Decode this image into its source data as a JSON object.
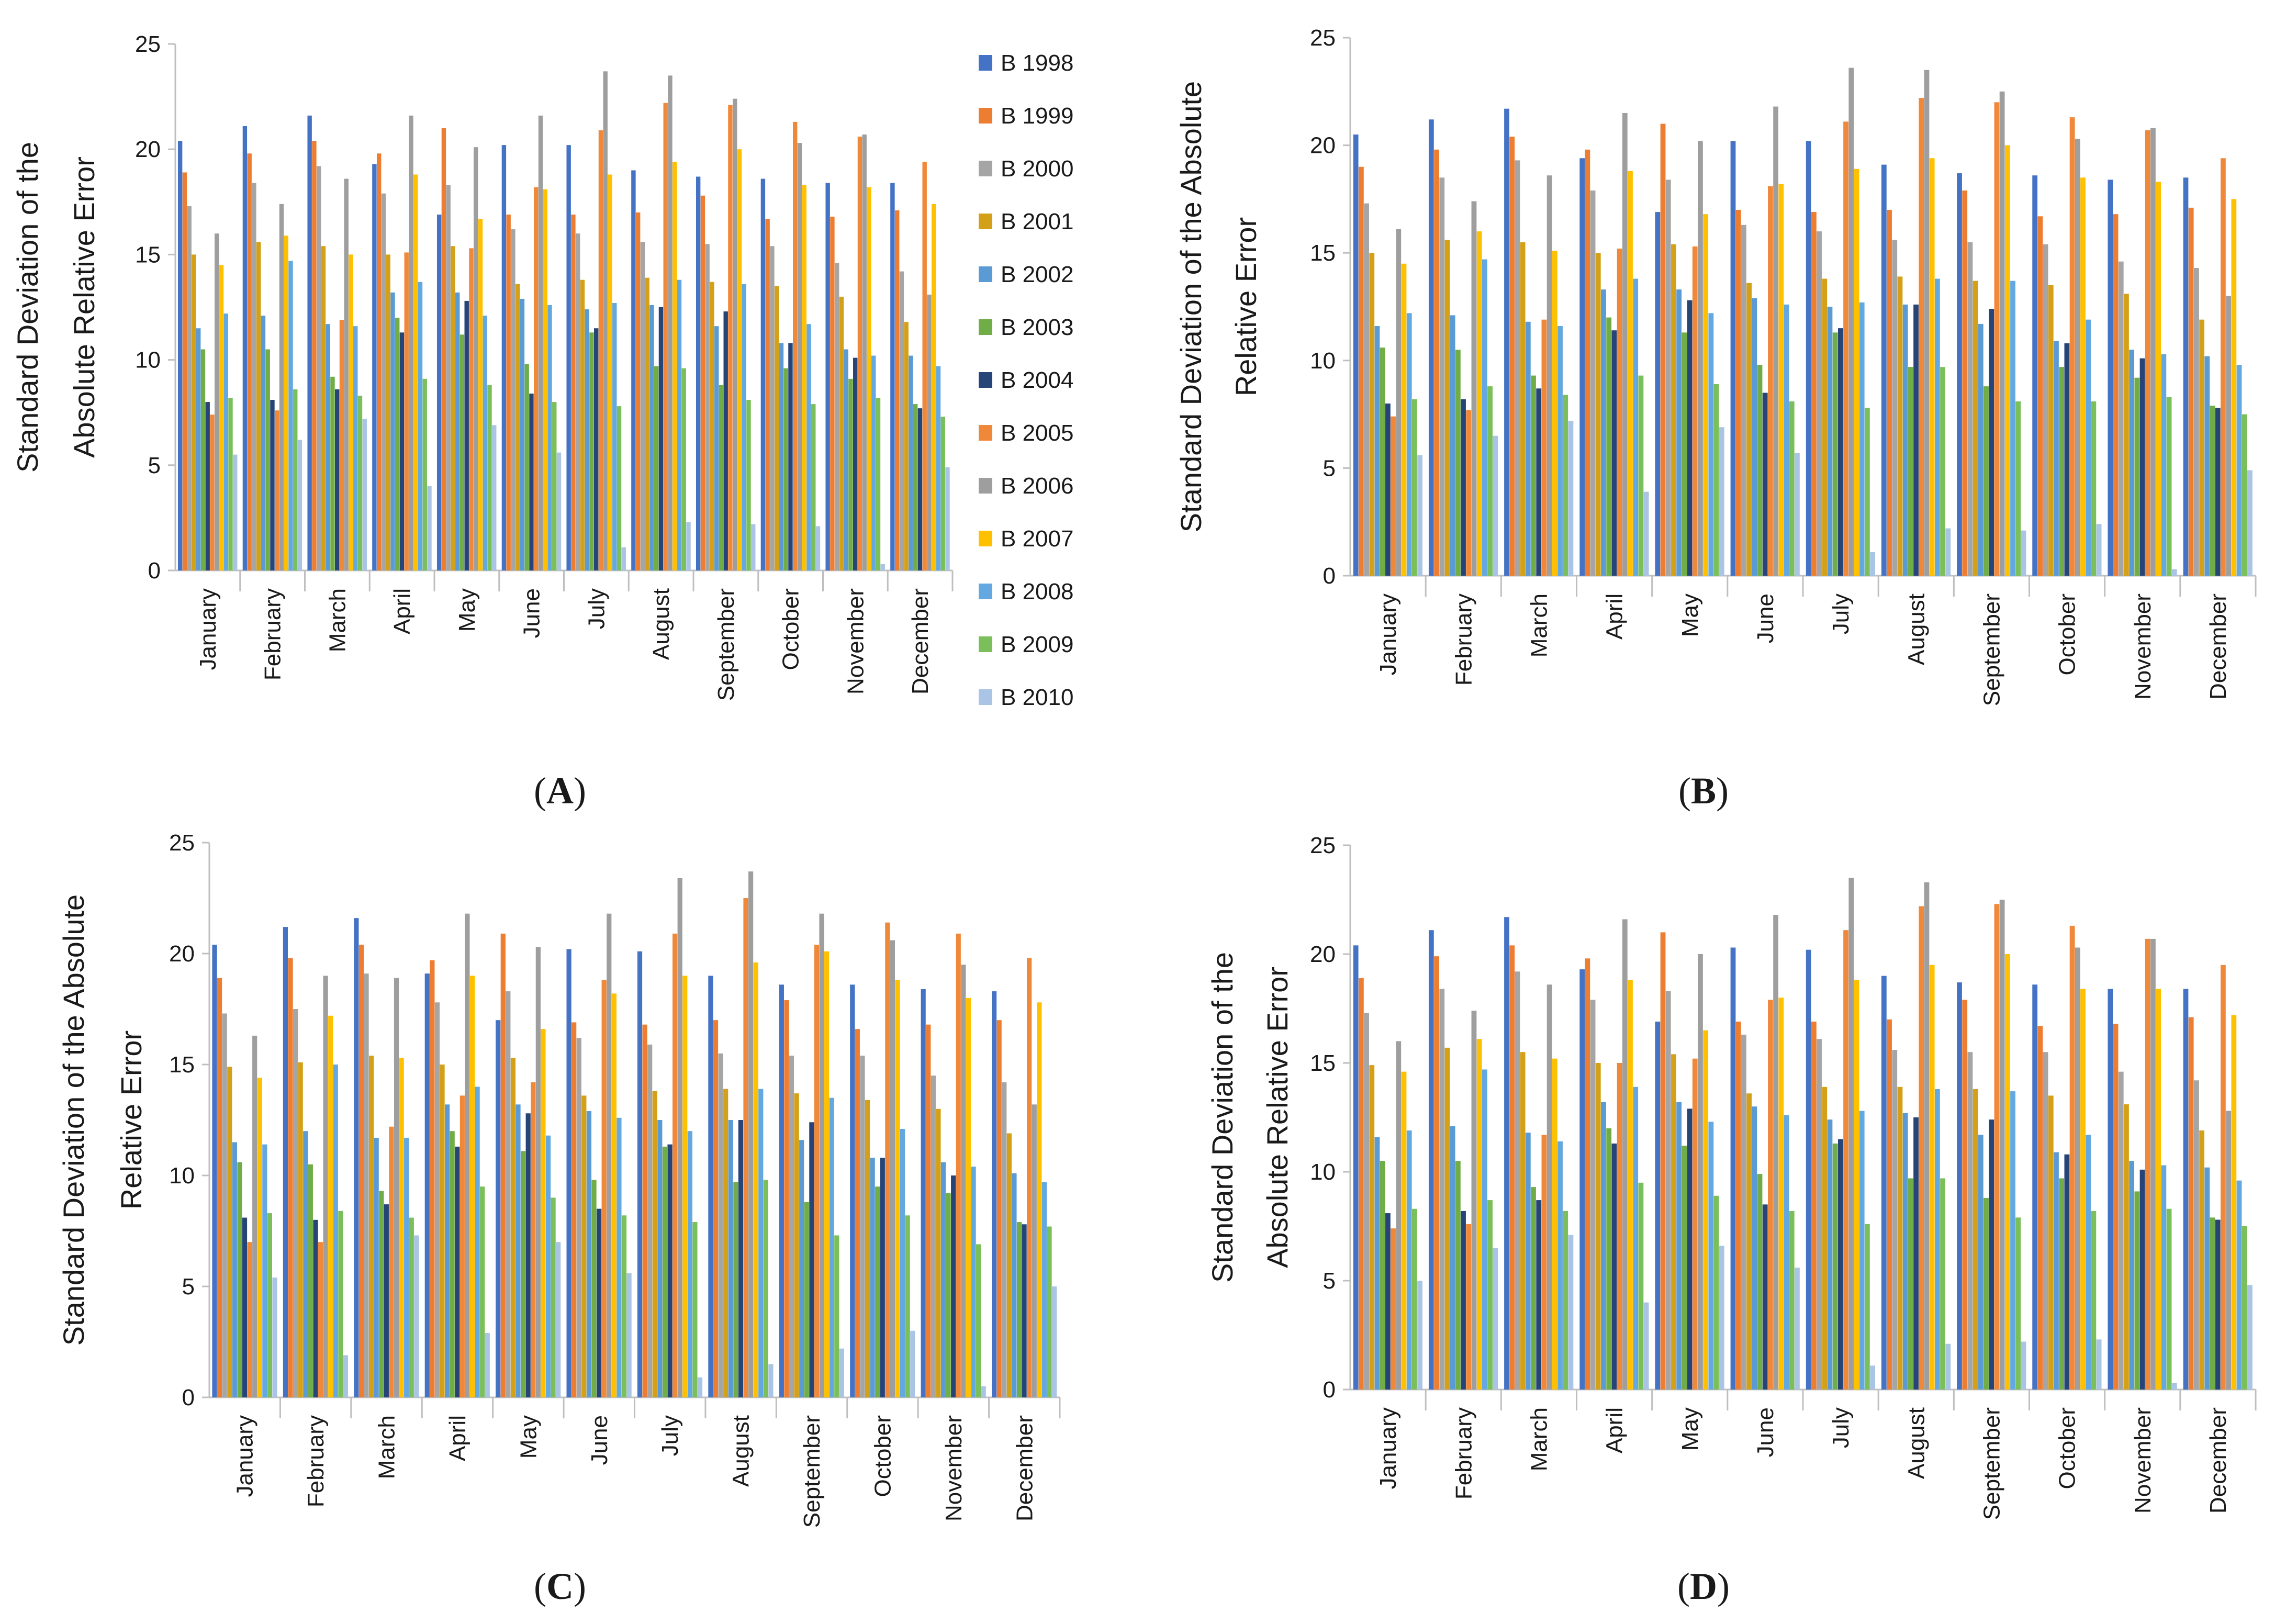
{
  "figure": {
    "panels": [
      "A",
      "B",
      "C",
      "D"
    ]
  },
  "legend": {
    "entries": [
      "B 1998",
      "B 1999",
      "B 2000",
      "B 2001",
      "B 2002",
      "B 2003",
      "B 2004",
      "B 2005",
      "B 2006",
      "B 2007",
      "B 2008",
      "B 2009",
      "B 2010"
    ]
  },
  "colors": [
    "#4472C4",
    "#ED7D31",
    "#A5A5A5",
    "#D4A017",
    "#5B9BD5",
    "#70AD47",
    "#264478",
    "#F0883A",
    "#9E9E9E",
    "#FFC000",
    "#63A8E0",
    "#7BBF5A",
    "#A9C4E4"
  ],
  "chart_data": [
    {
      "type": "bar",
      "panel": "A",
      "title": "",
      "ylabel": [
        "Standard Deviation of the",
        "Absolute Relative Error"
      ],
      "xlabel": "",
      "ylim": [
        0,
        25
      ],
      "yticks": [
        0,
        5,
        10,
        15,
        20,
        25
      ],
      "grid": false,
      "legend_position": "right",
      "categories": [
        "January",
        "February",
        "March",
        "April",
        "May",
        "June",
        "July",
        "August",
        "September",
        "October",
        "November",
        "December"
      ],
      "series": [
        {
          "name": "B 1998",
          "values": [
            20.4,
            21.1,
            21.6,
            19.3,
            16.9,
            20.2,
            20.2,
            19.0,
            18.7,
            18.6,
            18.4,
            18.4
          ]
        },
        {
          "name": "B 1999",
          "values": [
            18.9,
            19.8,
            20.4,
            19.8,
            21.0,
            16.9,
            16.9,
            17.0,
            17.8,
            16.7,
            16.8,
            17.1
          ]
        },
        {
          "name": "B 2000",
          "values": [
            17.3,
            18.4,
            19.2,
            17.9,
            18.3,
            16.2,
            16.0,
            15.6,
            15.5,
            15.4,
            14.6,
            14.2
          ]
        },
        {
          "name": "B 2001",
          "values": [
            15.0,
            15.6,
            15.4,
            15.0,
            15.4,
            13.6,
            13.8,
            13.9,
            13.7,
            13.5,
            13.0,
            11.8
          ]
        },
        {
          "name": "B 2002",
          "values": [
            11.5,
            12.1,
            11.7,
            13.2,
            13.2,
            12.9,
            12.4,
            12.6,
            11.6,
            10.8,
            10.5,
            10.2
          ]
        },
        {
          "name": "B 2003",
          "values": [
            10.5,
            10.5,
            9.2,
            12.0,
            11.2,
            9.8,
            11.3,
            9.7,
            8.8,
            9.6,
            9.1,
            7.9
          ]
        },
        {
          "name": "B 2004",
          "values": [
            8.0,
            8.1,
            8.6,
            11.3,
            12.8,
            8.4,
            11.5,
            12.5,
            12.3,
            10.8,
            10.1,
            7.7
          ]
        },
        {
          "name": "B 2005",
          "values": [
            7.4,
            7.6,
            11.9,
            15.1,
            15.3,
            18.2,
            20.9,
            22.2,
            22.1,
            21.3,
            20.6,
            19.4
          ]
        },
        {
          "name": "B 2006",
          "values": [
            16.0,
            17.4,
            18.6,
            21.6,
            20.1,
            21.6,
            23.7,
            23.5,
            22.4,
            20.3,
            20.7,
            13.1
          ]
        },
        {
          "name": "B 2007",
          "values": [
            14.5,
            15.9,
            15.0,
            18.8,
            16.7,
            18.1,
            18.8,
            19.4,
            20.0,
            18.3,
            18.2,
            17.4
          ]
        },
        {
          "name": "B 2008",
          "values": [
            12.2,
            14.7,
            11.6,
            13.7,
            12.1,
            12.6,
            12.7,
            13.8,
            13.6,
            11.7,
            10.2,
            9.7
          ]
        },
        {
          "name": "B 2009",
          "values": [
            8.2,
            8.6,
            8.3,
            9.1,
            8.8,
            8.0,
            7.8,
            9.6,
            8.1,
            7.9,
            8.2,
            7.3
          ]
        },
        {
          "name": "B 2010",
          "values": [
            5.5,
            6.2,
            7.2,
            4.0,
            6.9,
            5.6,
            1.1,
            2.3,
            2.2,
            2.1,
            0.3,
            4.9
          ]
        }
      ]
    },
    {
      "type": "bar",
      "panel": "B",
      "title": "",
      "ylabel": [
        "Standard Deviation of the Absolute",
        "Relative Error"
      ],
      "xlabel": "",
      "ylim": [
        0,
        25
      ],
      "yticks": [
        0,
        5,
        10,
        15,
        20,
        25
      ],
      "grid": false,
      "categories": [
        "January",
        "February",
        "March",
        "April",
        "May",
        "June",
        "July",
        "August",
        "September",
        "October",
        "November",
        "December"
      ],
      "series": [
        {
          "name": "B 1998",
          "values": [
            20.5,
            21.2,
            21.7,
            19.4,
            16.9,
            20.2,
            20.2,
            19.1,
            18.7,
            18.6,
            18.4,
            18.5
          ]
        },
        {
          "name": "B 1999",
          "values": [
            19.0,
            19.8,
            20.4,
            19.8,
            21.0,
            17.0,
            16.9,
            17.0,
            17.9,
            16.7,
            16.8,
            17.1
          ]
        },
        {
          "name": "B 2000",
          "values": [
            17.3,
            18.5,
            19.3,
            17.9,
            18.4,
            16.3,
            16.0,
            15.6,
            15.5,
            15.4,
            14.6,
            14.3
          ]
        },
        {
          "name": "B 2001",
          "values": [
            15.0,
            15.6,
            15.5,
            15.0,
            15.4,
            13.6,
            13.8,
            13.9,
            13.7,
            13.5,
            13.1,
            11.9
          ]
        },
        {
          "name": "B 2002",
          "values": [
            11.6,
            12.1,
            11.8,
            13.3,
            13.3,
            12.9,
            12.5,
            12.6,
            11.7,
            10.9,
            10.5,
            10.2
          ]
        },
        {
          "name": "B 2003",
          "values": [
            10.6,
            10.5,
            9.3,
            12.0,
            11.3,
            9.8,
            11.3,
            9.7,
            8.8,
            9.7,
            9.2,
            7.9
          ]
        },
        {
          "name": "B 2004",
          "values": [
            8.0,
            8.2,
            8.7,
            11.4,
            12.8,
            8.5,
            11.5,
            12.6,
            12.4,
            10.8,
            10.1,
            7.8
          ]
        },
        {
          "name": "B 2005",
          "values": [
            7.4,
            7.7,
            11.9,
            15.2,
            15.3,
            18.1,
            21.1,
            22.2,
            22.0,
            21.3,
            20.7,
            19.4
          ]
        },
        {
          "name": "B 2006",
          "values": [
            16.1,
            17.4,
            18.6,
            21.5,
            20.2,
            21.8,
            23.6,
            23.5,
            22.5,
            20.3,
            20.8,
            13.0
          ]
        },
        {
          "name": "B 2007",
          "values": [
            14.5,
            16.0,
            15.1,
            18.8,
            16.8,
            18.2,
            18.9,
            19.4,
            20.0,
            18.5,
            18.3,
            17.5
          ]
        },
        {
          "name": "B 2008",
          "values": [
            12.2,
            14.7,
            11.6,
            13.8,
            12.2,
            12.6,
            12.7,
            13.8,
            13.7,
            11.9,
            10.3,
            9.8
          ]
        },
        {
          "name": "B 2009",
          "values": [
            8.2,
            8.8,
            8.4,
            9.3,
            8.9,
            8.1,
            7.8,
            9.7,
            8.1,
            8.1,
            8.3,
            7.5
          ]
        },
        {
          "name": "B 2010",
          "values": [
            5.6,
            6.5,
            7.2,
            3.9,
            6.9,
            5.7,
            1.1,
            2.2,
            2.1,
            2.4,
            0.3,
            4.9
          ]
        }
      ]
    },
    {
      "type": "bar",
      "panel": "C",
      "title": "",
      "ylabel": [
        "Standard Deviation of the Absolute",
        "Relative Error"
      ],
      "xlabel": "",
      "ylim": [
        0,
        25
      ],
      "yticks": [
        0,
        5,
        10,
        15,
        20,
        25
      ],
      "grid": false,
      "categories": [
        "January",
        "February",
        "March",
        "April",
        "May",
        "June",
        "July",
        "August",
        "September",
        "October",
        "November",
        "December"
      ],
      "series": [
        {
          "name": "B 1998",
          "values": [
            20.4,
            21.2,
            21.6,
            19.1,
            17.0,
            20.2,
            20.1,
            19.0,
            18.6,
            18.6,
            18.4,
            18.3
          ]
        },
        {
          "name": "B 1999",
          "values": [
            18.9,
            19.8,
            20.4,
            19.7,
            20.9,
            16.9,
            16.8,
            17.0,
            17.9,
            16.6,
            16.8,
            17.0
          ]
        },
        {
          "name": "B 2000",
          "values": [
            17.3,
            17.5,
            19.1,
            17.8,
            18.3,
            16.2,
            15.9,
            15.5,
            15.4,
            15.4,
            14.5,
            14.2
          ]
        },
        {
          "name": "B 2001",
          "values": [
            14.9,
            15.1,
            15.4,
            15.0,
            15.3,
            13.6,
            13.8,
            13.9,
            13.7,
            13.4,
            13.0,
            11.9
          ]
        },
        {
          "name": "B 2002",
          "values": [
            11.5,
            12.0,
            11.7,
            13.2,
            13.2,
            12.9,
            12.5,
            12.5,
            11.6,
            10.8,
            10.6,
            10.1
          ]
        },
        {
          "name": "B 2003",
          "values": [
            10.6,
            10.5,
            9.3,
            12.0,
            11.1,
            9.8,
            11.3,
            9.7,
            8.8,
            9.5,
            9.2,
            7.9
          ]
        },
        {
          "name": "B 2004",
          "values": [
            8.1,
            8.0,
            8.7,
            11.3,
            12.8,
            8.5,
            11.4,
            12.5,
            12.4,
            10.8,
            10.0,
            7.8
          ]
        },
        {
          "name": "B 2005",
          "values": [
            7.0,
            7.0,
            12.2,
            13.6,
            14.2,
            18.8,
            20.9,
            22.5,
            20.4,
            21.4,
            20.9,
            19.8
          ]
        },
        {
          "name": "B 2006",
          "values": [
            16.3,
            19.0,
            18.9,
            21.8,
            20.3,
            21.8,
            23.4,
            23.7,
            21.8,
            20.6,
            19.5,
            13.2
          ]
        },
        {
          "name": "B 2007",
          "values": [
            14.4,
            17.2,
            15.3,
            19.0,
            16.6,
            18.2,
            19.0,
            19.6,
            20.1,
            18.8,
            18.0,
            17.8
          ]
        },
        {
          "name": "B 2008",
          "values": [
            11.4,
            15.0,
            11.7,
            14.0,
            11.8,
            12.6,
            12.0,
            13.9,
            13.5,
            12.1,
            10.4,
            9.7
          ]
        },
        {
          "name": "B 2009",
          "values": [
            8.3,
            8.4,
            8.1,
            9.5,
            9.0,
            8.2,
            7.9,
            9.8,
            7.3,
            8.2,
            6.9,
            7.7
          ]
        },
        {
          "name": "B 2010",
          "values": [
            5.4,
            1.9,
            7.3,
            2.9,
            7.0,
            5.6,
            0.9,
            1.5,
            2.2,
            3.0,
            0.5,
            5.0
          ]
        }
      ]
    },
    {
      "type": "bar",
      "panel": "D",
      "title": "",
      "ylabel": [
        "Standard Deviation of the",
        "Absolute Relative Error"
      ],
      "xlabel": "",
      "ylim": [
        0,
        25
      ],
      "yticks": [
        0,
        5,
        10,
        15,
        20,
        25
      ],
      "grid": false,
      "categories": [
        "January",
        "February",
        "March",
        "April",
        "May",
        "June",
        "July",
        "August",
        "September",
        "October",
        "November",
        "December"
      ],
      "series": [
        {
          "name": "B 1998",
          "values": [
            20.4,
            21.1,
            21.7,
            19.3,
            16.9,
            20.3,
            20.2,
            19.0,
            18.7,
            18.6,
            18.4,
            18.4
          ]
        },
        {
          "name": "B 1999",
          "values": [
            18.9,
            19.9,
            20.4,
            19.8,
            21.0,
            16.9,
            16.9,
            17.0,
            17.9,
            16.7,
            16.8,
            17.1
          ]
        },
        {
          "name": "B 2000",
          "values": [
            17.3,
            18.4,
            19.2,
            17.9,
            18.3,
            16.3,
            16.1,
            15.6,
            15.5,
            15.5,
            14.6,
            14.2
          ]
        },
        {
          "name": "B 2001",
          "values": [
            14.9,
            15.7,
            15.5,
            15.0,
            15.4,
            13.6,
            13.9,
            13.9,
            13.8,
            13.5,
            13.1,
            11.9
          ]
        },
        {
          "name": "B 2002",
          "values": [
            11.6,
            12.1,
            11.8,
            13.2,
            13.2,
            13.0,
            12.4,
            12.7,
            11.7,
            10.9,
            10.5,
            10.2
          ]
        },
        {
          "name": "B 2003",
          "values": [
            10.5,
            10.5,
            9.3,
            12.0,
            11.2,
            9.9,
            11.3,
            9.7,
            8.8,
            9.7,
            9.1,
            7.9
          ]
        },
        {
          "name": "B 2004",
          "values": [
            8.1,
            8.2,
            8.7,
            11.3,
            12.9,
            8.5,
            11.5,
            12.5,
            12.4,
            10.8,
            10.1,
            7.8
          ]
        },
        {
          "name": "B 2005",
          "values": [
            7.4,
            7.6,
            11.7,
            15.0,
            15.2,
            17.9,
            21.1,
            22.2,
            22.3,
            21.3,
            20.7,
            19.5
          ]
        },
        {
          "name": "B 2006",
          "values": [
            16.0,
            17.4,
            18.6,
            21.6,
            20.0,
            21.8,
            23.5,
            23.3,
            22.5,
            20.3,
            20.7,
            12.8
          ]
        },
        {
          "name": "B 2007",
          "values": [
            14.6,
            16.1,
            15.2,
            18.8,
            16.5,
            18.0,
            18.8,
            19.5,
            20.0,
            18.4,
            18.4,
            17.2
          ]
        },
        {
          "name": "B 2008",
          "values": [
            11.9,
            14.7,
            11.4,
            13.9,
            12.3,
            12.6,
            12.8,
            13.8,
            13.7,
            11.7,
            10.3,
            9.6
          ]
        },
        {
          "name": "B 2009",
          "values": [
            8.3,
            8.7,
            8.2,
            9.5,
            8.9,
            8.2,
            7.6,
            9.7,
            7.9,
            8.2,
            8.3,
            7.5
          ]
        },
        {
          "name": "B 2010",
          "values": [
            5.0,
            6.5,
            7.1,
            4.0,
            6.6,
            5.6,
            1.1,
            2.1,
            2.2,
            2.3,
            0.3,
            4.8
          ]
        }
      ]
    }
  ]
}
